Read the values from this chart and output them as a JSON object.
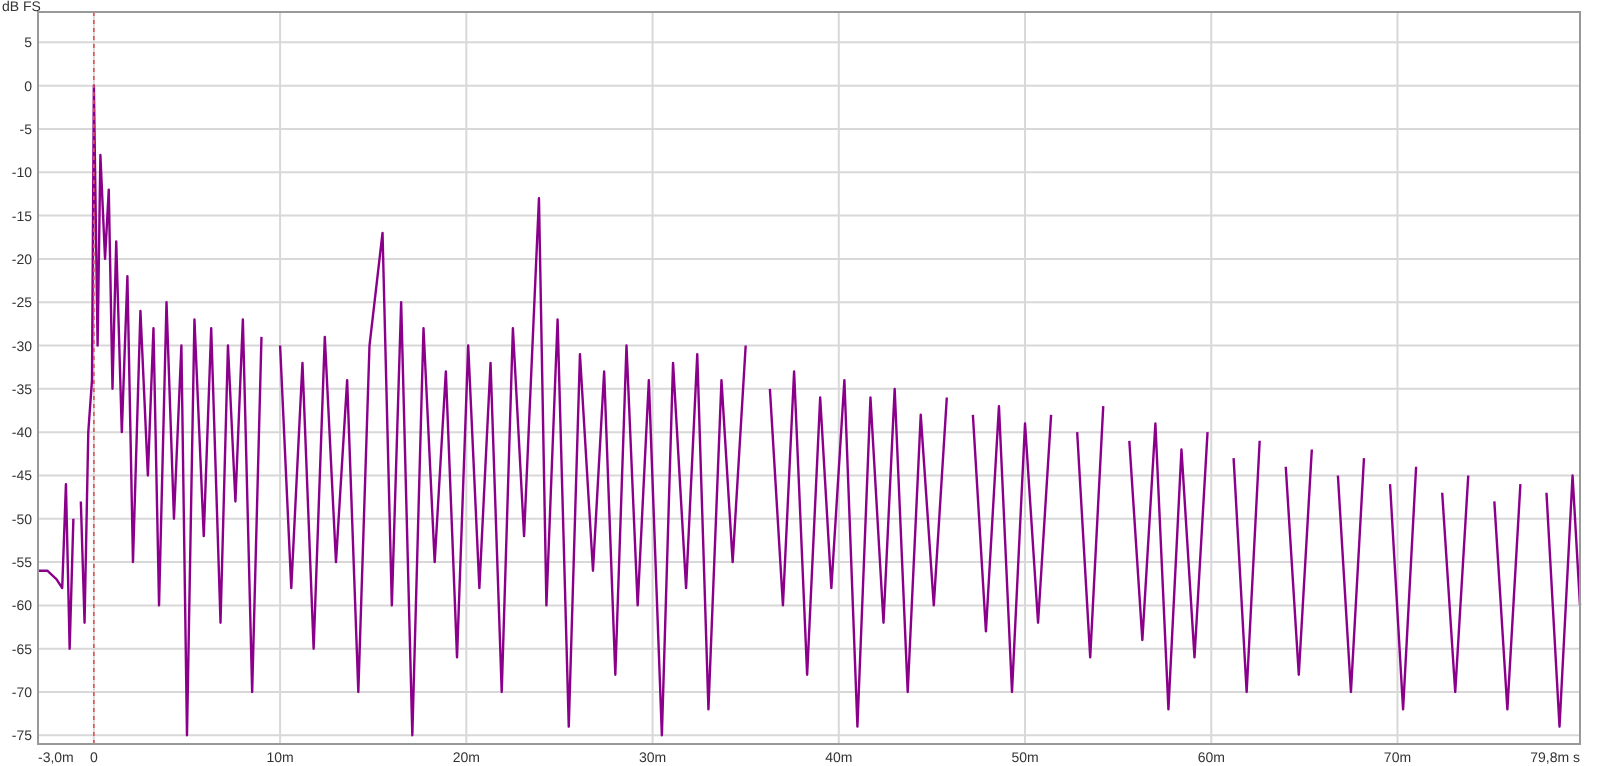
{
  "chart_data": {
    "type": "line",
    "ylabel": "dB FS",
    "xlim": [
      -3.0,
      79.8
    ],
    "ylim": [
      -76,
      8.5
    ],
    "xticks": [
      {
        "value": -3.0,
        "label": "-3,0m"
      },
      0,
      {
        "value": 10,
        "label": "10m"
      },
      {
        "value": 20,
        "label": "20m"
      },
      {
        "value": 30,
        "label": "30m"
      },
      {
        "value": 40,
        "label": "40m"
      },
      {
        "value": 50,
        "label": "50m"
      },
      {
        "value": 60,
        "label": "60m"
      },
      {
        "value": 70,
        "label": "70m"
      },
      {
        "value": 79.8,
        "label": "79,8m s"
      }
    ],
    "yticks": [
      5,
      0,
      -5,
      -10,
      -15,
      -20,
      -25,
      -30,
      -35,
      -40,
      -45,
      -50,
      -55,
      -60,
      -65,
      -70,
      -75
    ],
    "grid": true,
    "marker": "none",
    "line_style": "solid",
    "ref_lines": [
      {
        "axis": "x",
        "value": 0,
        "color": "#e05050",
        "line_style": "dashed"
      }
    ],
    "series": [
      {
        "color": "#8b008b",
        "x": [
          -3.0,
          -2.5,
          -2.0,
          -1.7,
          -1.5,
          -1.3,
          -1.1,
          -0.9,
          -0.7,
          -0.5,
          -0.3,
          -0.1,
          0,
          0.2,
          0.35,
          0.6,
          0.8,
          1.0,
          1.2,
          1.5,
          1.8,
          2.1,
          2.5,
          2.9,
          3.2,
          3.5,
          3.9,
          4.3,
          4.7,
          5.0,
          5.4,
          5.9,
          6.3,
          6.8,
          7.2,
          7.6,
          8.0,
          8.5,
          9.0,
          9.5,
          10.0,
          10.6,
          11.2,
          11.8,
          12.4,
          13.0,
          13.6,
          14.2,
          14.8,
          15.5,
          16.0,
          16.5,
          17.1,
          17.7,
          18.3,
          18.9,
          19.5,
          20.1,
          20.7,
          21.3,
          21.9,
          22.5,
          23.1,
          23.9,
          24.3,
          24.9,
          25.5,
          26.1,
          26.8,
          27.4,
          28.0,
          28.6,
          29.2,
          29.8,
          30.5,
          31.1,
          31.8,
          32.4,
          33.0,
          33.7,
          34.3,
          35.0,
          35.6,
          36.3,
          37.0,
          37.6,
          38.3,
          39.0,
          39.6,
          40.3,
          41.0,
          41.7,
          42.4,
          43.0,
          43.7,
          44.4,
          45.1,
          45.8,
          46.5,
          47.2,
          47.9,
          48.6,
          49.3,
          50.0,
          50.7,
          51.4,
          52.1,
          52.8,
          53.5,
          54.2,
          54.9,
          55.6,
          56.3,
          57.0,
          57.7,
          58.4,
          59.1,
          59.8,
          60.5,
          61.2,
          61.9,
          62.6,
          63.3,
          64.0,
          64.7,
          65.4,
          66.1,
          66.8,
          67.5,
          68.2,
          68.9,
          69.6,
          70.3,
          71.0,
          71.7,
          72.4,
          73.1,
          73.8,
          74.5,
          75.2,
          75.9,
          76.6,
          77.3,
          78.0,
          78.7,
          79.4,
          79.8
        ],
        "values": [
          -56,
          -56,
          -57,
          -58,
          -46,
          -65,
          -50,
          null,
          -48,
          -62,
          -40,
          -34,
          0,
          -30,
          -8,
          -20,
          -12,
          -35,
          -18,
          -40,
          -22,
          -55,
          -26,
          -45,
          -28,
          -60,
          -25,
          -50,
          -30,
          -75,
          -27,
          -52,
          -28,
          -62,
          -30,
          -48,
          -27,
          -70,
          -29,
          null,
          -30,
          -58,
          -32,
          -65,
          -29,
          -55,
          -34,
          -70,
          -30,
          -17,
          -60,
          -25,
          -75,
          -28,
          -55,
          -33,
          -66,
          -30,
          -58,
          -32,
          -70,
          -28,
          -52,
          -13,
          -60,
          -27,
          -74,
          -31,
          -56,
          -33,
          -68,
          -30,
          -60,
          -34,
          -75,
          -32,
          -58,
          -31,
          -72,
          -34,
          -55,
          -30,
          null,
          -35,
          -60,
          -33,
          -68,
          -36,
          -58,
          -34,
          -74,
          -36,
          -62,
          -35,
          -70,
          -38,
          -60,
          -36,
          null,
          -38,
          -63,
          -37,
          -70,
          -39,
          -62,
          -38,
          null,
          -40,
          -66,
          -37,
          null,
          -41,
          -64,
          -39,
          -72,
          -42,
          -66,
          -40,
          null,
          -43,
          -70,
          -41,
          null,
          -44,
          -68,
          -42,
          null,
          -45,
          -70,
          -43,
          null,
          -46,
          -72,
          -44,
          null,
          -47,
          -70,
          -45,
          null,
          -48,
          -72,
          -46,
          null,
          -47,
          -74,
          -45,
          -60
        ]
      }
    ]
  }
}
